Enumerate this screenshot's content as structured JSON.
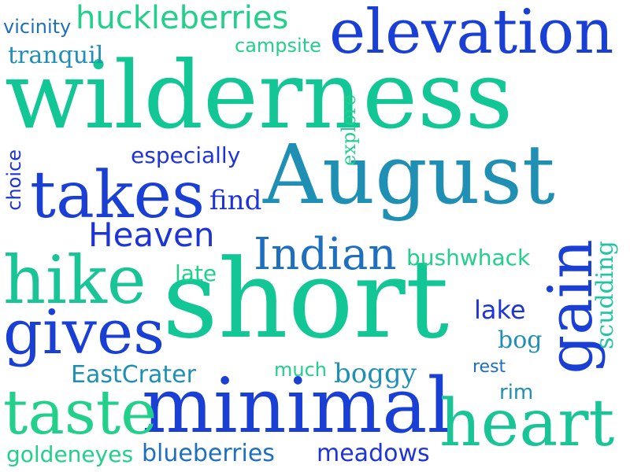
{
  "palette": {
    "teal": "#1fc79a",
    "green": "#22d08c",
    "blue": "#1a44d6",
    "royal": "#1f34d8",
    "steel": "#1e8fb0",
    "ocean": "#2a7fb8"
  },
  "words": [
    {
      "text": "wilderness",
      "color": "#12c795"
    },
    {
      "text": "short",
      "color": "#12c795"
    },
    {
      "text": "August",
      "color": "#1f8fb4"
    },
    {
      "text": "minimal",
      "color": "#1a3fd4"
    },
    {
      "text": "elevation",
      "color": "#1a3fd4"
    },
    {
      "text": "gain",
      "color": "#1a3fd4"
    },
    {
      "text": "takes",
      "color": "#1a3fd4"
    },
    {
      "text": "hike",
      "color": "#19c497"
    },
    {
      "text": "gives",
      "color": "#1a3fd4"
    },
    {
      "text": "taste",
      "color": "#22d08c"
    },
    {
      "text": "heart",
      "color": "#19c497"
    },
    {
      "text": "Indian",
      "color": "#1f6fbf"
    },
    {
      "text": "Heaven",
      "color": "#1f34d8"
    },
    {
      "text": "huckleberries",
      "color": "#22d08c"
    },
    {
      "text": "tranquil",
      "color": "#1f8fb4"
    },
    {
      "text": "vicinity",
      "color": "#1f6fbf"
    },
    {
      "text": "campsite",
      "color": "#22d08c"
    },
    {
      "text": "especially",
      "color": "#1f34d8"
    },
    {
      "text": "explore",
      "color": "#22d08c"
    },
    {
      "text": "choice",
      "color": "#1f34d8"
    },
    {
      "text": "find",
      "color": "#1f34d8"
    },
    {
      "text": "late",
      "color": "#22d08c"
    },
    {
      "text": "bushwhack",
      "color": "#22d08c"
    },
    {
      "text": "scudding",
      "color": "#22c4a4"
    },
    {
      "text": "lake",
      "color": "#1f34d8"
    },
    {
      "text": "bog",
      "color": "#1f8fb4"
    },
    {
      "text": "rest",
      "color": "#1f6fbf"
    },
    {
      "text": "rim",
      "color": "#1f8fb4"
    },
    {
      "text": "much",
      "color": "#22d08c"
    },
    {
      "text": "boggy",
      "color": "#1f8fb4"
    },
    {
      "text": "EastCrater",
      "color": "#1f8fb4"
    },
    {
      "text": "goldeneyes",
      "color": "#22d08c"
    },
    {
      "text": "blueberries",
      "color": "#1f6fbf"
    },
    {
      "text": "meadows",
      "color": "#1f34d8"
    }
  ]
}
